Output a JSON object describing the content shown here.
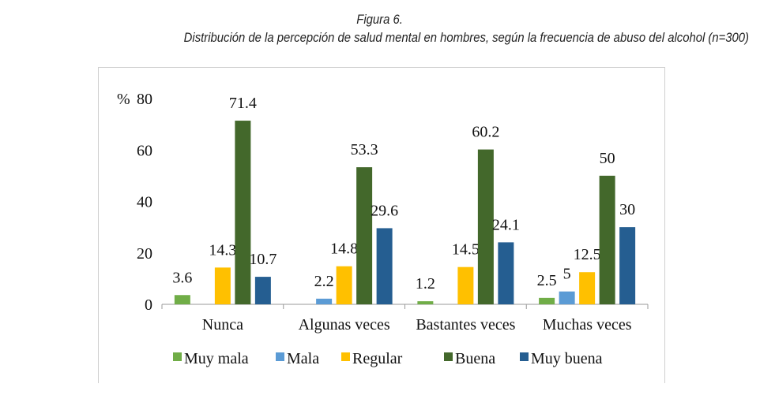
{
  "title": "Figura 6.",
  "subtitle": "Distribución de la percepción de salud mental en hombres, según la frecuencia de abuso del alcohol (n=300)",
  "chart_data": {
    "type": "bar",
    "ylabel": "%",
    "ylim": [
      0,
      80
    ],
    "yticks": [
      0,
      20,
      40,
      60,
      80
    ],
    "grid": false,
    "legend": "bottom",
    "categories": [
      "Nunca",
      "Algunas veces",
      "Bastantes veces",
      "Muchas veces"
    ],
    "series": [
      {
        "name": "Muy mala",
        "color": "#70ad47",
        "values": [
          3.6,
          null,
          1.2,
          2.5
        ]
      },
      {
        "name": "Mala",
        "color": "#5b9bd5",
        "values": [
          null,
          2.2,
          null,
          5
        ]
      },
      {
        "name": "Regular",
        "color": "#ffc000",
        "values": [
          14.3,
          14.8,
          14.5,
          12.5
        ]
      },
      {
        "name": "Buena",
        "color": "#43682b",
        "values": [
          71.4,
          53.3,
          60.2,
          50
        ]
      },
      {
        "name": "Muy buena",
        "color": "#255e91",
        "values": [
          10.7,
          29.6,
          24.1,
          30
        ]
      }
    ]
  }
}
